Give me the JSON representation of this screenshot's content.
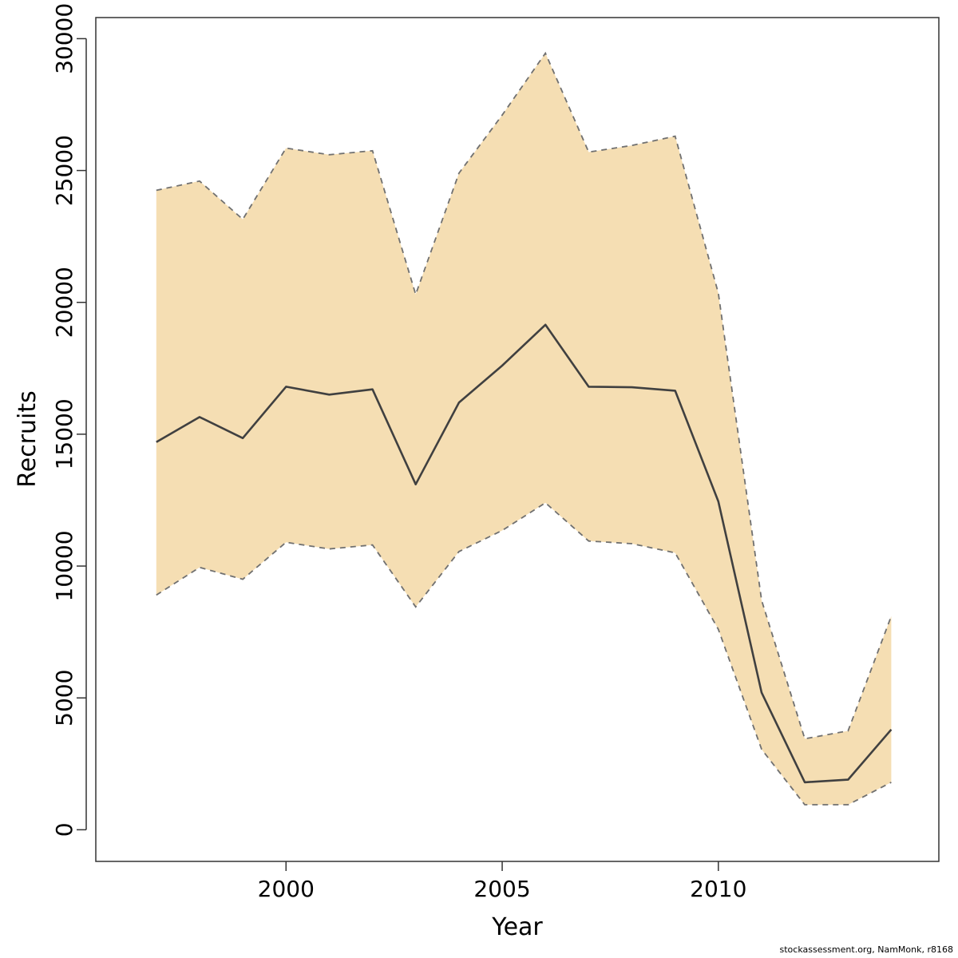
{
  "chart_data": {
    "type": "area",
    "title": "",
    "xlabel": "Year",
    "ylabel": "Recruits",
    "xlim": [
      1995.6,
      2015.1
    ],
    "ylim": [
      -1200,
      30800
    ],
    "x_ticks": [
      2000,
      2005,
      2010
    ],
    "y_ticks": [
      0,
      5000,
      10000,
      15000,
      20000,
      25000,
      30000
    ],
    "grid": false,
    "legend": "none",
    "x": [
      1997,
      1998,
      1999,
      2000,
      2001,
      2002,
      2003,
      2004,
      2005,
      2006,
      2007,
      2008,
      2009,
      2010,
      2011,
      2012,
      2013,
      2014
    ],
    "series": [
      {
        "role": "estimate",
        "values": [
          14700,
          15650,
          14850,
          16800,
          16500,
          16700,
          13100,
          16200,
          17600,
          19150,
          16800,
          16780,
          16650,
          12450,
          5200,
          1800,
          1900,
          3800
        ]
      },
      {
        "role": "upper-bound",
        "values": [
          24250,
          24600,
          23150,
          25850,
          25600,
          25750,
          20300,
          24900,
          27100,
          29450,
          25700,
          25950,
          26300,
          20350,
          8700,
          3450,
          3750,
          8100
        ]
      },
      {
        "role": "lower-bound",
        "values": [
          8900,
          9950,
          9500,
          10900,
          10650,
          10800,
          8450,
          10550,
          11350,
          12400,
          10950,
          10850,
          10500,
          7600,
          3050,
          950,
          950,
          1800
        ]
      }
    ],
    "colors": {
      "band_fill": "#F5DEB3",
      "estimate_line": "#404040",
      "bound_line": "#707070",
      "frame": "#333333"
    }
  },
  "footer": {
    "credit": "stockassessment.org, NamMonk, r8168"
  }
}
